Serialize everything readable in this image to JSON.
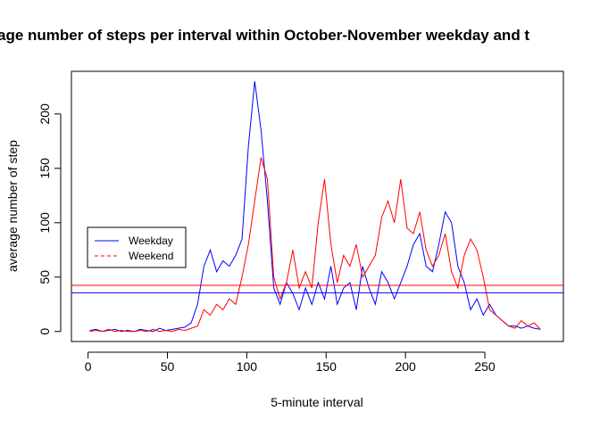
{
  "chart_data": {
    "type": "line",
    "title": "age number of steps per interval within October-November weekday and t",
    "x_label": "5-minute interval",
    "y_label": "average number of step",
    "x": [
      1,
      5,
      9,
      13,
      17,
      21,
      25,
      29,
      33,
      37,
      41,
      45,
      49,
      53,
      57,
      61,
      65,
      69,
      73,
      77,
      81,
      85,
      89,
      93,
      97,
      101,
      105,
      109,
      113,
      117,
      121,
      125,
      129,
      133,
      137,
      141,
      145,
      149,
      153,
      157,
      161,
      165,
      169,
      173,
      177,
      181,
      185,
      189,
      193,
      197,
      201,
      205,
      209,
      213,
      217,
      221,
      225,
      229,
      233,
      237,
      241,
      245,
      249,
      253,
      257,
      261,
      265,
      269,
      273,
      277,
      281,
      285
    ],
    "series": [
      {
        "name": "Weekday",
        "color": "#0000ff",
        "dash": false,
        "values": [
          1,
          2,
          0,
          1,
          2,
          0,
          1,
          0,
          2,
          1,
          0,
          3,
          1,
          2,
          3,
          4,
          8,
          25,
          60,
          75,
          55,
          65,
          60,
          70,
          85,
          170,
          230,
          185,
          120,
          40,
          25,
          45,
          35,
          20,
          40,
          25,
          45,
          30,
          60,
          25,
          40,
          45,
          20,
          60,
          40,
          25,
          55,
          45,
          30,
          45,
          60,
          80,
          90,
          60,
          55,
          80,
          110,
          100,
          60,
          45,
          20,
          30,
          15,
          25,
          15,
          10,
          5,
          5,
          3,
          5,
          3,
          2
        ]
      },
      {
        "name": "Weekend",
        "color": "#ff0000",
        "dash": true,
        "values": [
          0,
          1,
          0,
          2,
          0,
          1,
          0,
          0,
          1,
          0,
          2,
          0,
          1,
          0,
          2,
          1,
          3,
          5,
          20,
          15,
          25,
          20,
          30,
          25,
          50,
          80,
          120,
          160,
          140,
          50,
          30,
          45,
          75,
          40,
          55,
          40,
          100,
          140,
          80,
          45,
          70,
          60,
          80,
          50,
          60,
          70,
          105,
          120,
          100,
          140,
          95,
          90,
          110,
          75,
          60,
          70,
          90,
          55,
          40,
          70,
          85,
          75,
          50,
          20,
          15,
          10,
          5,
          3,
          10,
          5,
          8,
          2
        ]
      }
    ],
    "hlines": [
      {
        "value": 35.6,
        "color": "#0000ff"
      },
      {
        "value": 42.4,
        "color": "#ff0000"
      }
    ],
    "xlim": [
      -10.48,
      299.48
    ],
    "ylim": [
      -9.2,
      239.2
    ],
    "xticks": [
      0,
      50,
      100,
      150,
      200,
      250
    ],
    "yticks": [
      0,
      50,
      100,
      150,
      200
    ],
    "legend": "left"
  }
}
